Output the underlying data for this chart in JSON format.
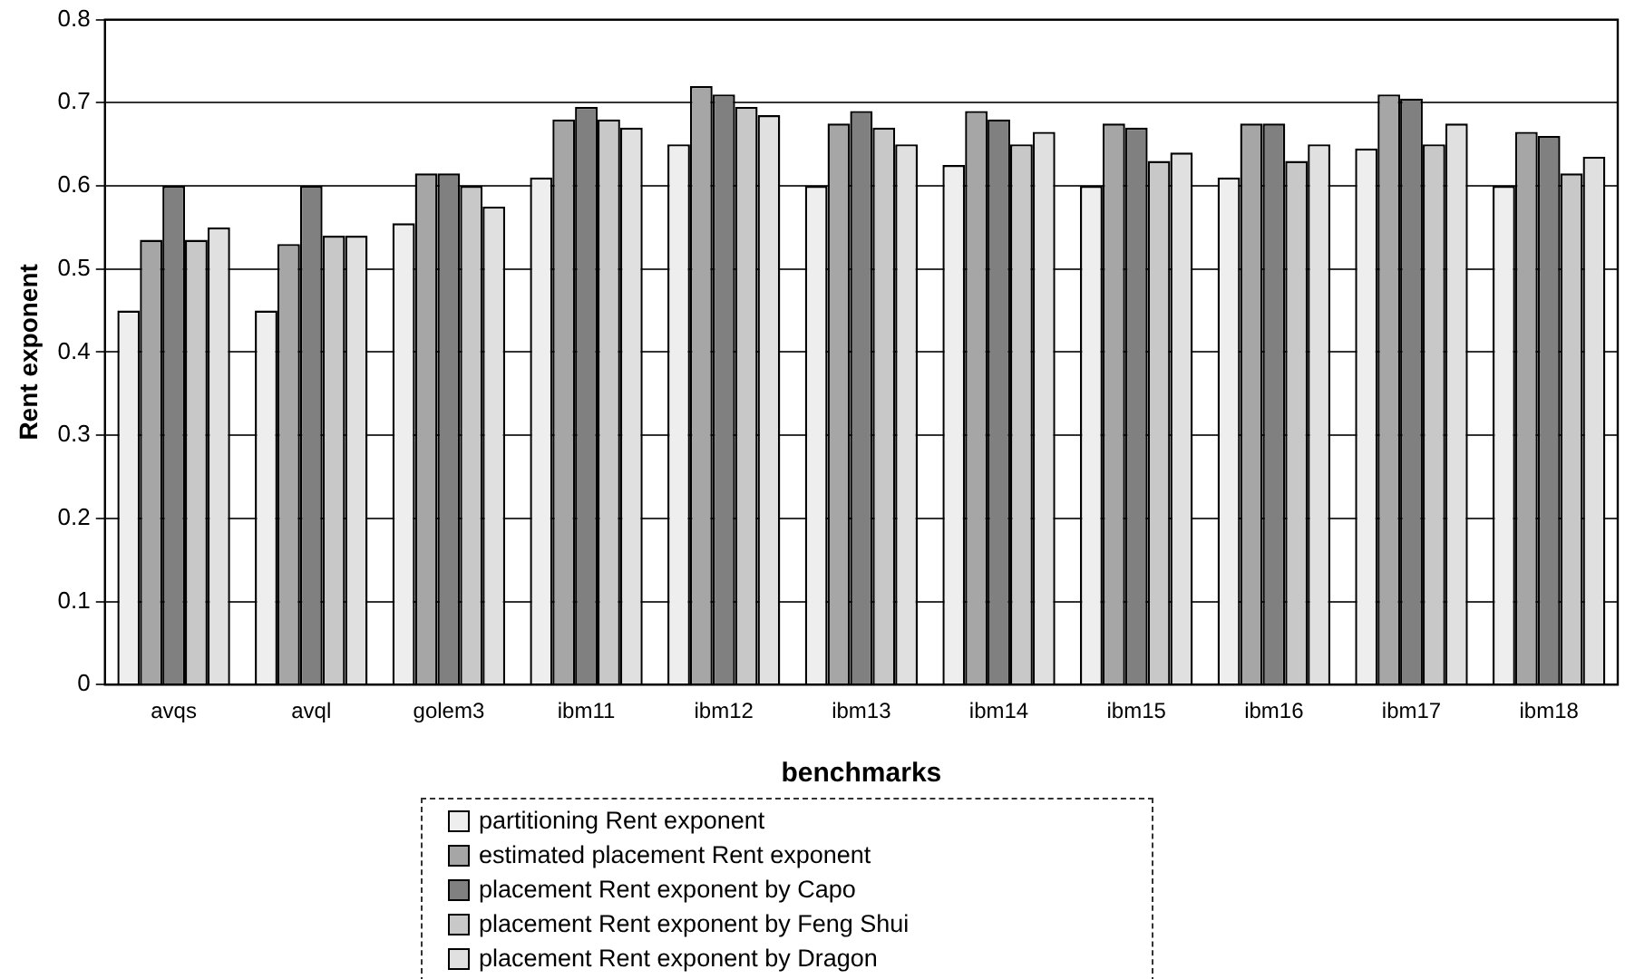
{
  "chart_data": {
    "type": "bar",
    "xlabel": "benchmarks",
    "ylabel": "Rent exponent",
    "categories": [
      "avqs",
      "avql",
      "golem3",
      "ibm11",
      "ibm12",
      "ibm13",
      "ibm14",
      "ibm15",
      "ibm16",
      "ibm17",
      "ibm18"
    ],
    "series": [
      {
        "name": "partitioning Rent exponent",
        "color": "#eeeeee",
        "values": [
          0.45,
          0.45,
          0.555,
          0.61,
          0.65,
          0.6,
          0.625,
          0.6,
          0.61,
          0.645,
          0.6
        ]
      },
      {
        "name": "estimated placement Rent exponent",
        "color": "#a6a6a6",
        "values": [
          0.535,
          0.53,
          0.615,
          0.68,
          0.72,
          0.675,
          0.69,
          0.675,
          0.675,
          0.71,
          0.665
        ]
      },
      {
        "name": "placement Rent exponent by Capo",
        "color": "#808080",
        "values": [
          0.6,
          0.6,
          0.615,
          0.695,
          0.71,
          0.69,
          0.68,
          0.67,
          0.675,
          0.705,
          0.66
        ]
      },
      {
        "name": "placement Rent exponent by Feng Shui",
        "color": "#c8c8c8",
        "values": [
          0.535,
          0.54,
          0.6,
          0.68,
          0.695,
          0.67,
          0.65,
          0.63,
          0.63,
          0.65,
          0.615
        ]
      },
      {
        "name": "placement Rent exponent by Dragon",
        "color": "#e0e0e0",
        "values": [
          0.55,
          0.54,
          0.575,
          0.67,
          0.685,
          0.65,
          0.665,
          0.64,
          0.65,
          0.675,
          0.635
        ]
      }
    ],
    "ylim": [
      0,
      0.8
    ],
    "yticks": [
      0,
      0.1,
      0.2,
      0.3,
      0.4,
      0.5,
      0.6,
      0.7,
      0.8
    ],
    "grid": "y",
    "legend": "bottom"
  }
}
